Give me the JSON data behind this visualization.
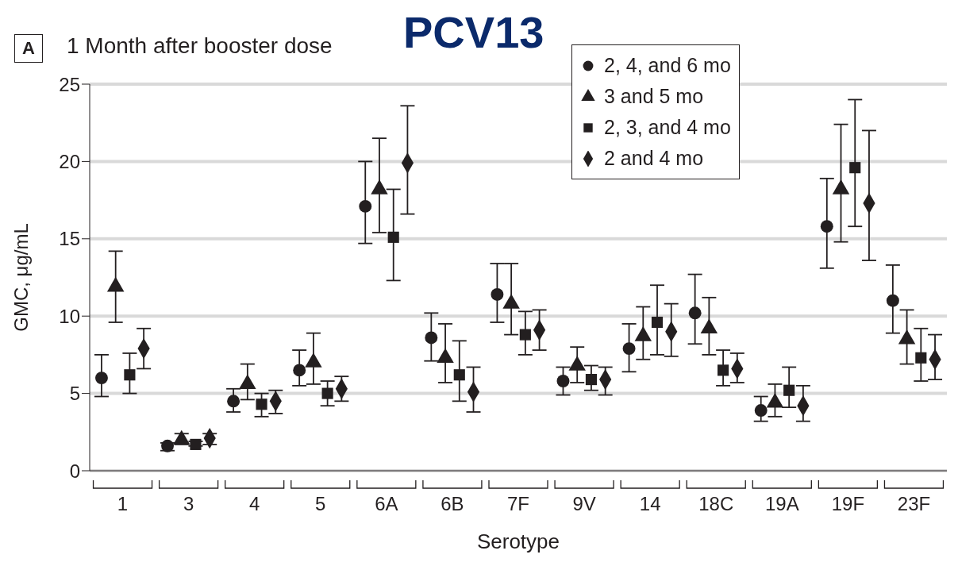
{
  "chart_data": {
    "type": "scatter",
    "title": "1 Month after booster dose",
    "subtitle": "PCV13",
    "xlabel": "Serotype",
    "ylabel": "GMC, μg/mL",
    "annotations": [
      "A"
    ],
    "categories": [
      "1",
      "3",
      "4",
      "5",
      "6A",
      "6B",
      "7F",
      "9V",
      "14",
      "18C",
      "19A",
      "19F",
      "23F"
    ],
    "series": [
      {
        "name": "2, 4, and 6 mo",
        "color": "#231f20",
        "marker": "circle",
        "values": [
          6.0,
          1.6,
          4.5,
          6.5,
          17.1,
          8.6,
          11.4,
          5.8,
          7.9,
          10.2,
          3.9,
          15.8,
          11.0
        ],
        "errors": [
          [
            4.8,
            7.5
          ],
          [
            1.3,
            1.8
          ],
          [
            3.8,
            5.3
          ],
          [
            5.5,
            7.8
          ],
          [
            14.7,
            20.0
          ],
          [
            7.1,
            10.2
          ],
          [
            9.6,
            13.4
          ],
          [
            4.9,
            6.7
          ],
          [
            6.4,
            9.5
          ],
          [
            8.2,
            12.7
          ],
          [
            3.2,
            4.8
          ],
          [
            13.1,
            18.9
          ],
          [
            8.9,
            13.3
          ]
        ]
      },
      {
        "name": "3 and 5 mo",
        "color": "#231f20",
        "marker": "triangle",
        "values": [
          11.9,
          2.0,
          5.6,
          7.0,
          18.2,
          7.3,
          10.8,
          6.8,
          8.7,
          9.2,
          4.4,
          18.2,
          8.5
        ],
        "errors": [
          [
            9.6,
            14.2
          ],
          [
            1.7,
            2.4
          ],
          [
            4.6,
            6.9
          ],
          [
            5.6,
            8.9
          ],
          [
            15.4,
            21.5
          ],
          [
            5.7,
            9.5
          ],
          [
            8.8,
            13.4
          ],
          [
            5.7,
            8.0
          ],
          [
            7.2,
            10.6
          ],
          [
            7.5,
            11.2
          ],
          [
            3.5,
            5.6
          ],
          [
            14.8,
            22.4
          ],
          [
            6.9,
            10.4
          ]
        ]
      },
      {
        "name": "2, 3, and 4 mo",
        "color": "#231f20",
        "marker": "square",
        "values": [
          6.2,
          1.7,
          4.3,
          5.0,
          15.1,
          6.2,
          8.8,
          5.9,
          9.6,
          6.5,
          5.2,
          19.6,
          7.3
        ],
        "errors": [
          [
            5.0,
            7.6
          ],
          [
            1.6,
            1.9
          ],
          [
            3.5,
            5.0
          ],
          [
            4.2,
            5.8
          ],
          [
            12.3,
            18.2
          ],
          [
            4.5,
            8.4
          ],
          [
            7.5,
            10.3
          ],
          [
            5.2,
            6.8
          ],
          [
            7.5,
            12.0
          ],
          [
            5.5,
            7.8
          ],
          [
            4.1,
            6.7
          ],
          [
            15.8,
            24.0
          ],
          [
            5.8,
            9.2
          ]
        ]
      },
      {
        "name": "2 and 4 mo",
        "color": "#231f20",
        "marker": "diamond",
        "values": [
          7.9,
          2.1,
          4.5,
          5.3,
          19.9,
          5.1,
          9.1,
          5.9,
          9.0,
          6.6,
          4.2,
          17.3,
          7.2
        ],
        "errors": [
          [
            6.6,
            9.2
          ],
          [
            1.7,
            2.4
          ],
          [
            3.7,
            5.2
          ],
          [
            4.5,
            6.1
          ],
          [
            16.6,
            23.6
          ],
          [
            3.8,
            6.7
          ],
          [
            7.8,
            10.4
          ],
          [
            4.9,
            6.7
          ],
          [
            7.4,
            10.8
          ],
          [
            5.7,
            7.6
          ],
          [
            3.2,
            5.5
          ],
          [
            13.6,
            22.0
          ],
          [
            5.9,
            8.8
          ]
        ]
      }
    ],
    "ylim": [
      0,
      25
    ],
    "yticks": [
      0,
      5,
      10,
      15,
      20,
      25
    ],
    "grid": "y",
    "legend": "top right"
  }
}
